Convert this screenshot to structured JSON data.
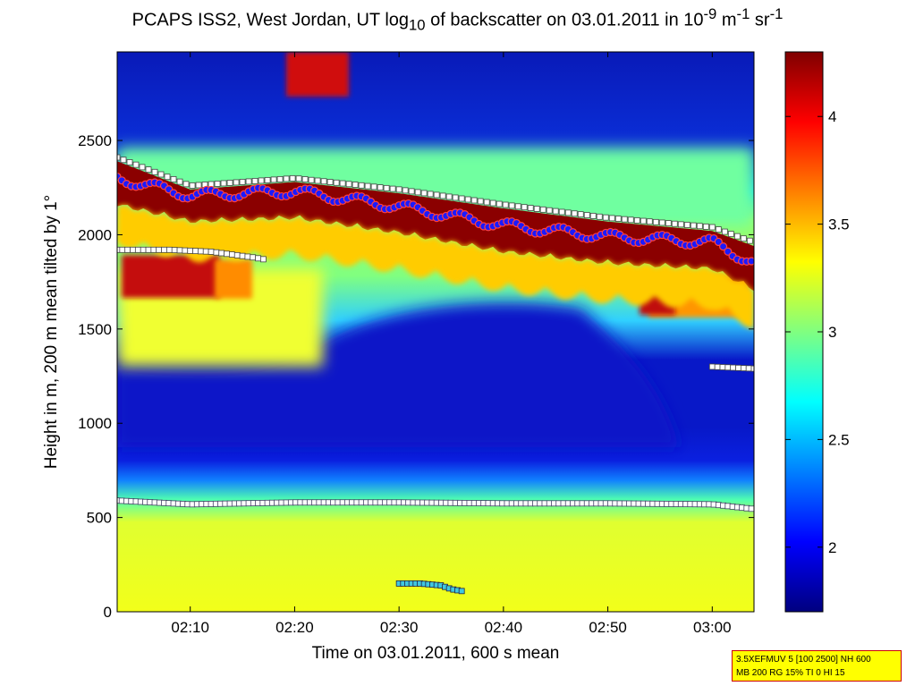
{
  "title": {
    "part1": "PCAPS ISS2, West Jordan, UT log",
    "sub": "10",
    "part2": " of backscatter on 03.01.2011 in 10",
    "sup1": "-9",
    "part3": " m",
    "sup2": "-1",
    "part4": " sr",
    "sup3": "-1"
  },
  "info_box": {
    "line1": "3.5XEFMUV 5 [100 2500] NH 600",
    "line2": "MB 200 RG 15% TI 0 HI 15"
  },
  "chart_data": {
    "type": "heatmap",
    "xlabel": "Time on 03.01.2011, 600 s mean",
    "ylabel": "Height in m, 200 m mean tilted by 1°",
    "xlim": [
      "02:03",
      "03:04"
    ],
    "ylim": [
      0,
      2970
    ],
    "x_ticks": [
      "02:10",
      "02:20",
      "02:30",
      "02:40",
      "02:50",
      "03:00"
    ],
    "x_tick_minutes": [
      130,
      140,
      150,
      160,
      170,
      180
    ],
    "x_range_minutes": [
      123,
      184
    ],
    "y_ticks": [
      0,
      500,
      1000,
      1500,
      2000,
      2500
    ],
    "colorbar": {
      "range": [
        1.7,
        4.3
      ],
      "ticks": [
        2,
        2.5,
        3,
        3.5,
        4
      ],
      "tick_labels": [
        "2",
        "2.5",
        "3",
        "3.5",
        "4"
      ]
    },
    "layer_top_heights": {
      "minutes": [
        123,
        130,
        140,
        150,
        160,
        170,
        180,
        184
      ],
      "values": [
        2300,
        2210,
        2230,
        2150,
        2050,
        1990,
        1960,
        1850
      ]
    },
    "upper_detection_heights": {
      "minutes": [
        123,
        130,
        140,
        150,
        160,
        170,
        180,
        184
      ],
      "values": [
        2410,
        2260,
        2300,
        2240,
        2160,
        2090,
        2040,
        1960
      ]
    },
    "mid_layer_heights": {
      "minutes": [
        123,
        128,
        132,
        136,
        137
      ],
      "values": [
        1920,
        1920,
        1910,
        1880,
        1870
      ]
    },
    "late_layer_heights": {
      "minutes": [
        180,
        184
      ],
      "values": [
        1300,
        1290
      ]
    },
    "surface_layer_heights": {
      "minutes": [
        123,
        130,
        140,
        150,
        160,
        170,
        180,
        184
      ],
      "values": [
        590,
        570,
        580,
        580,
        575,
        575,
        570,
        545
      ]
    },
    "low_layer_heights": {
      "minutes": [
        150,
        152,
        154,
        155,
        156
      ],
      "values": [
        150,
        150,
        140,
        120,
        110
      ]
    }
  }
}
